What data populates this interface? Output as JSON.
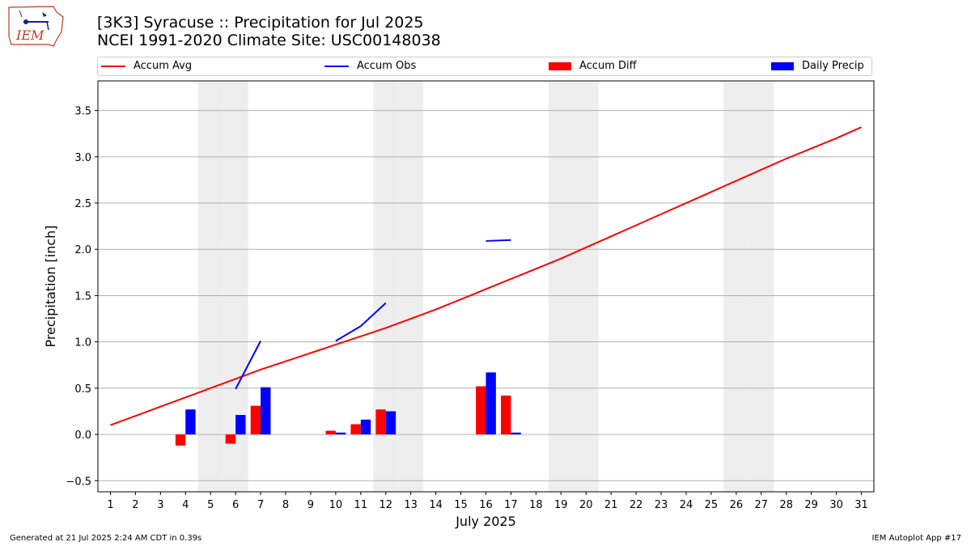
{
  "header": {
    "title_line1": "[3K3] Syracuse :: Precipitation for Jul 2025",
    "title_line2": "NCEI 1991-2020 Climate Site: USC00148038"
  },
  "logo": {
    "text": "IEM",
    "icon": "iem-iowa-logo-icon"
  },
  "legend": {
    "accum_avg": "Accum Avg",
    "accum_obs": "Accum Obs",
    "accum_diff": "Accum Diff",
    "daily_precip": "Daily Precip"
  },
  "footer": {
    "generated": "Generated at 21 Jul 2025 2:24 AM CDT in 0.39s",
    "app": "IEM Autoplot App #17"
  },
  "colors": {
    "avg": "#ff0000",
    "obs": "#0000ff",
    "diff": "#ff0000",
    "daily": "#0000ff",
    "weekend": "#eeeeee",
    "grid": "#b0b0b0"
  },
  "chart_data": {
    "type": "bar",
    "xlabel": "July 2025",
    "ylabel": "Precipitation [inch]",
    "xlim": [
      0.5,
      31.5
    ],
    "ylim": [
      -0.62,
      3.82
    ],
    "yticks": [
      -0.5,
      0.0,
      0.5,
      1.0,
      1.5,
      2.0,
      2.5,
      3.0,
      3.5
    ],
    "ytick_labels": [
      "−0.5",
      "0.0",
      "0.5",
      "1.0",
      "1.5",
      "2.0",
      "2.5",
      "3.0",
      "3.5"
    ],
    "x_ticks": [
      1,
      2,
      3,
      4,
      5,
      6,
      7,
      8,
      9,
      10,
      11,
      12,
      13,
      14,
      15,
      16,
      17,
      18,
      19,
      20,
      21,
      22,
      23,
      24,
      25,
      26,
      27,
      28,
      29,
      30,
      31
    ],
    "grid": "horizontal",
    "weekend_days": [
      5,
      6,
      12,
      13,
      19,
      20,
      26,
      27
    ],
    "series": [
      {
        "name": "Accum Avg",
        "type": "line",
        "x": [
          1,
          2,
          3,
          4,
          5,
          6,
          7,
          8,
          9,
          10,
          11,
          12,
          13,
          14,
          15,
          16,
          17,
          18,
          19,
          20,
          21,
          22,
          23,
          24,
          25,
          26,
          27,
          28,
          29,
          30,
          31
        ],
        "values": [
          0.1,
          0.2,
          0.3,
          0.4,
          0.5,
          0.6,
          0.7,
          0.79,
          0.88,
          0.97,
          1.06,
          1.15,
          1.25,
          1.35,
          1.46,
          1.57,
          1.68,
          1.79,
          1.9,
          2.02,
          2.14,
          2.26,
          2.38,
          2.5,
          2.62,
          2.74,
          2.86,
          2.98,
          3.09,
          3.2,
          3.32
        ]
      },
      {
        "name": "Accum Obs",
        "type": "line",
        "segments": [
          {
            "x": [
              6,
              7
            ],
            "values": [
              0.49,
              1.01
            ]
          },
          {
            "x": [
              10,
              11,
              12
            ],
            "values": [
              1.01,
              1.17,
              1.42
            ]
          },
          {
            "x": [
              16,
              17
            ],
            "values": [
              2.09,
              2.1
            ]
          }
        ]
      },
      {
        "name": "Accum Diff",
        "type": "bar",
        "x": [
          4,
          6,
          7,
          10,
          11,
          12,
          16,
          17
        ],
        "values": [
          -0.12,
          -0.1,
          0.31,
          0.04,
          0.11,
          0.27,
          0.52,
          0.42
        ]
      },
      {
        "name": "Daily Precip",
        "type": "bar",
        "x": [
          4,
          6,
          7,
          10,
          11,
          12,
          16,
          17
        ],
        "values": [
          0.27,
          0.21,
          0.51,
          0.02,
          0.16,
          0.25,
          0.67,
          0.02
        ]
      }
    ]
  }
}
